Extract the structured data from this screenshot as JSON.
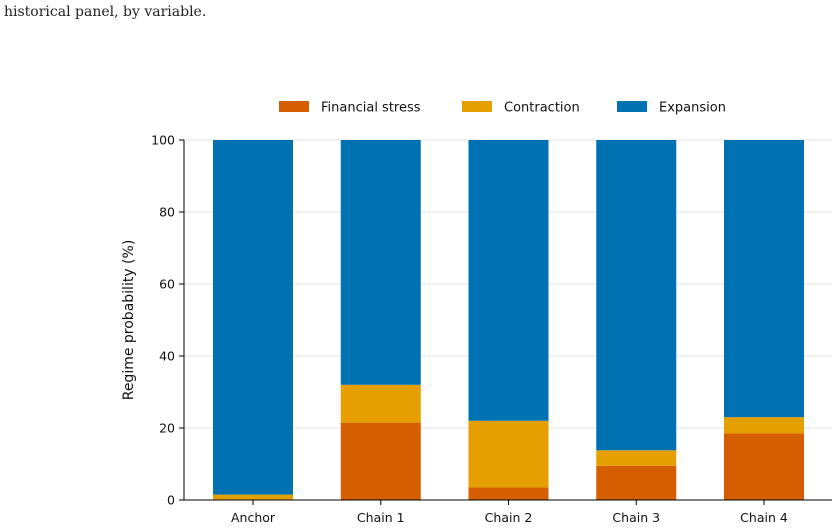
{
  "page": {
    "caption": "historical panel, by variable."
  },
  "chart_data": {
    "type": "bar",
    "stacked": true,
    "title": "",
    "xlabel": "",
    "ylabel": "Regime probability (%)",
    "ylim": [
      0,
      100
    ],
    "yticks": [
      0,
      20,
      40,
      60,
      80,
      100
    ],
    "grid": true,
    "legend_position": "top",
    "categories": [
      "Anchor",
      "Chain 1",
      "Chain 2",
      "Chain 3",
      "Chain 4"
    ],
    "series": [
      {
        "name": "Financial stress",
        "color": "#D55E00",
        "values": [
          0.2,
          21.5,
          3.5,
          9.5,
          18.5
        ]
      },
      {
        "name": "Contraction",
        "color": "#E69F00",
        "values": [
          1.3,
          10.5,
          18.5,
          4.3,
          4.5
        ]
      },
      {
        "name": "Expansion",
        "color": "#0072B2",
        "values": [
          98.5,
          68.0,
          78.0,
          86.2,
          77.0
        ]
      }
    ]
  }
}
